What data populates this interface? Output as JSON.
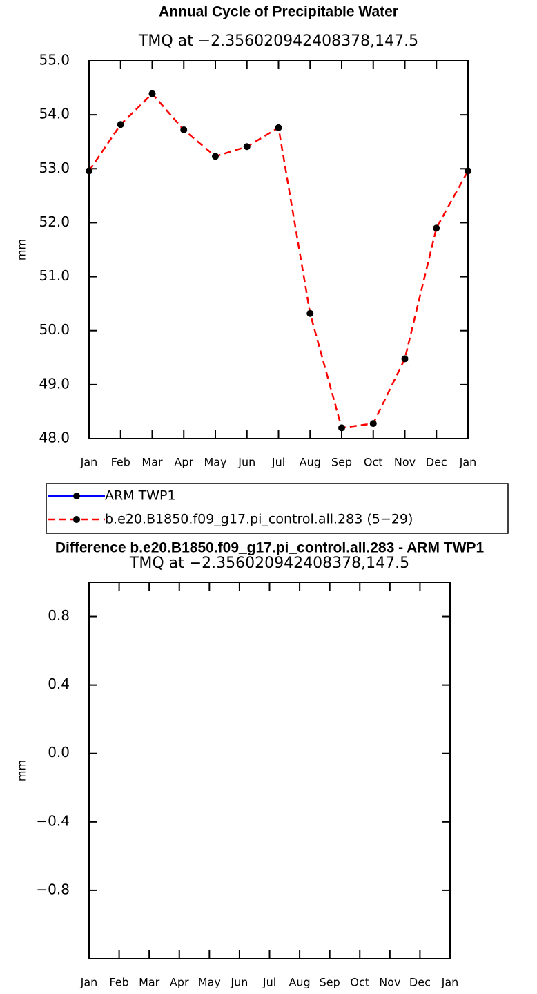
{
  "chart_data": [
    {
      "type": "line",
      "title": "Annual Cycle of Precipitable Water",
      "subtitle": "TMQ at −2.356020942408378,147.5",
      "ylabel": "mm",
      "categories": [
        "Jan",
        "Feb",
        "Mar",
        "Apr",
        "May",
        "Jun",
        "Jul",
        "Aug",
        "Sep",
        "Oct",
        "Nov",
        "Dec",
        "Jan"
      ],
      "series": [
        {
          "name": "ARM TWP1",
          "color": "#0000ff",
          "line_style": "solid",
          "values": [
            null,
            null,
            null,
            null,
            null,
            null,
            null,
            null,
            null,
            null,
            null,
            null,
            null
          ]
        },
        {
          "name": "b.e20.B1850.f09_g17.pi_control.all.283 (5−29)",
          "color": "#ff0000",
          "line_style": "dashed",
          "values": [
            52.96,
            53.82,
            54.39,
            53.72,
            53.23,
            53.41,
            53.76,
            50.32,
            48.2,
            48.28,
            49.48,
            51.9,
            52.96
          ]
        }
      ],
      "ylim": [
        48,
        55
      ],
      "yticks": [
        {
          "value": 48,
          "label": "48.0"
        },
        {
          "value": 49,
          "label": "49.0"
        },
        {
          "value": 50,
          "label": "50.0"
        },
        {
          "value": 51,
          "label": "51.0"
        },
        {
          "value": 52,
          "label": "52.0"
        },
        {
          "value": 53,
          "label": "53.0"
        },
        {
          "value": 54,
          "label": "54.0"
        },
        {
          "value": 55,
          "label": "55.0"
        }
      ]
    },
    {
      "type": "line",
      "title": "Difference b.e20.B1850.f09_g17.pi_control.all.283 - ARM TWP1",
      "subtitle": "TMQ at −2.356020942408378,147.5",
      "ylabel": "mm",
      "categories": [
        "Jan",
        "Feb",
        "Mar",
        "Apr",
        "May",
        "Jun",
        "Jul",
        "Aug",
        "Sep",
        "Oct",
        "Nov",
        "Dec",
        "Jan"
      ],
      "ylim": [
        -1.2,
        1.0
      ],
      "yticks": [
        {
          "value": -0.8,
          "label": "−0.8"
        },
        {
          "value": -0.4,
          "label": "−0.4"
        },
        {
          "value": 0,
          "label": "0.0"
        },
        0.4,
        0.8
      ]
    }
  ]
}
